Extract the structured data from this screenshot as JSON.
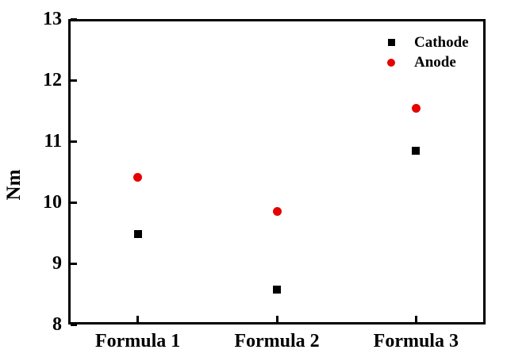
{
  "chart_data": {
    "type": "scatter",
    "title": "",
    "categories": [
      "Formula 1",
      "Formula 2",
      "Formula 3"
    ],
    "series": [
      {
        "name": "Cathode",
        "marker": "square",
        "color": "#000000",
        "values": [
          9.48,
          8.57,
          10.85
        ]
      },
      {
        "name": "Anode",
        "marker": "circle",
        "color": "#e60000",
        "values": [
          10.41,
          9.85,
          11.54
        ]
      }
    ],
    "xlabel": "",
    "ylabel": "Nm",
    "ylim": [
      8,
      13
    ],
    "yticks": [
      8,
      9,
      10,
      11,
      12,
      13
    ],
    "xlim_category_padding": 0.5,
    "grid": false,
    "legend_position": "top-right",
    "frame": "full-box",
    "tick_direction": "in",
    "axis_color": "#000000",
    "background_color": "#ffffff"
  }
}
